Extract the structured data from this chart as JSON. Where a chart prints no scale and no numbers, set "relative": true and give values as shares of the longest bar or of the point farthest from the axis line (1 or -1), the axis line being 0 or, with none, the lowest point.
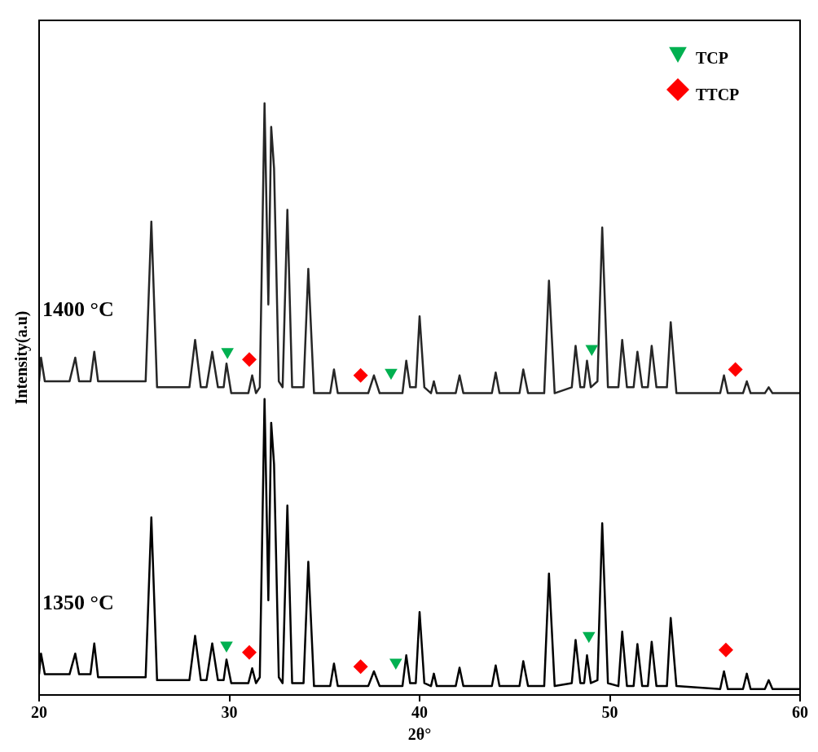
{
  "chart_data": {
    "type": "line",
    "xlabel": "2θ°",
    "ylabel": "Intensity(a.u)",
    "relative": true,
    "xlim": [
      20,
      60
    ],
    "xticks": [
      20,
      30,
      40,
      50,
      60
    ],
    "grid": false,
    "legend": "top right",
    "x": [
      20,
      20.1,
      20.3,
      21.6,
      21.9,
      22.1,
      22.7,
      22.9,
      23.1,
      25.6,
      25.9,
      26.2,
      27.9,
      28.2,
      28.5,
      28.8,
      29.1,
      29.4,
      29.7,
      29.85,
      30.1,
      31.0,
      31.2,
      31.4,
      31.6,
      31.85,
      32.05,
      32.2,
      32.35,
      32.6,
      32.8,
      33.05,
      33.3,
      33.9,
      34.15,
      34.45,
      35.3,
      35.5,
      35.7,
      37.3,
      37.6,
      37.9,
      39.1,
      39.3,
      39.5,
      39.8,
      40.0,
      40.25,
      40.6,
      40.75,
      40.9,
      41.9,
      42.1,
      42.3,
      43.8,
      44.0,
      44.2,
      45.25,
      45.45,
      45.7,
      46.55,
      46.8,
      47.1,
      48.0,
      48.2,
      48.45,
      48.65,
      48.8,
      49.0,
      49.35,
      49.6,
      49.9,
      50.45,
      50.65,
      50.9,
      51.25,
      51.45,
      51.7,
      52.0,
      52.2,
      52.45,
      53.0,
      53.2,
      53.5,
      55.8,
      56.0,
      56.2,
      57.0,
      57.2,
      57.4,
      58.15,
      58.35,
      58.55,
      60
    ],
    "series": [
      {
        "name": "1400 °C",
        "color": "#262626",
        "marker": "none",
        "values": [
          0.53,
          0.57,
          0.53,
          0.53,
          0.57,
          0.53,
          0.53,
          0.58,
          0.53,
          0.53,
          0.8,
          0.52,
          0.52,
          0.6,
          0.52,
          0.52,
          0.58,
          0.52,
          0.52,
          0.56,
          0.51,
          0.51,
          0.54,
          0.51,
          0.52,
          1.0,
          0.66,
          0.96,
          0.89,
          0.53,
          0.52,
          0.82,
          0.52,
          0.52,
          0.72,
          0.51,
          0.51,
          0.55,
          0.51,
          0.51,
          0.54,
          0.51,
          0.51,
          0.565,
          0.52,
          0.52,
          0.64,
          0.52,
          0.51,
          0.53,
          0.51,
          0.51,
          0.54,
          0.51,
          0.51,
          0.545,
          0.51,
          0.51,
          0.55,
          0.51,
          0.51,
          0.7,
          0.51,
          0.52,
          0.59,
          0.52,
          0.52,
          0.565,
          0.52,
          0.53,
          0.79,
          0.52,
          0.52,
          0.6,
          0.52,
          0.52,
          0.58,
          0.52,
          0.52,
          0.59,
          0.52,
          0.52,
          0.63,
          0.51,
          0.51,
          0.54,
          0.51,
          0.51,
          0.53,
          0.51,
          0.51,
          0.52,
          0.51,
          0.51
        ]
      },
      {
        "name": "1350 °C",
        "color": "#000000",
        "marker": "none",
        "values": [
          0.035,
          0.07,
          0.035,
          0.035,
          0.07,
          0.035,
          0.035,
          0.087,
          0.03,
          0.03,
          0.3,
          0.025,
          0.025,
          0.1,
          0.025,
          0.025,
          0.087,
          0.025,
          0.025,
          0.06,
          0.02,
          0.02,
          0.045,
          0.02,
          0.03,
          0.5,
          0.16,
          0.46,
          0.39,
          0.03,
          0.02,
          0.32,
          0.02,
          0.02,
          0.225,
          0.015,
          0.015,
          0.053,
          0.015,
          0.015,
          0.04,
          0.015,
          0.015,
          0.067,
          0.02,
          0.02,
          0.14,
          0.02,
          0.015,
          0.036,
          0.015,
          0.015,
          0.046,
          0.015,
          0.015,
          0.05,
          0.015,
          0.015,
          0.057,
          0.015,
          0.015,
          0.205,
          0.015,
          0.02,
          0.093,
          0.02,
          0.02,
          0.067,
          0.02,
          0.025,
          0.29,
          0.02,
          0.015,
          0.107,
          0.015,
          0.015,
          0.086,
          0.015,
          0.015,
          0.09,
          0.015,
          0.015,
          0.13,
          0.015,
          0.01,
          0.04,
          0.01,
          0.01,
          0.036,
          0.01,
          0.01,
          0.025,
          0.01,
          0.01
        ]
      },
      {
        "name": "TCP",
        "type": "scatter",
        "color": "#00b050",
        "marker": "triangle",
        "x": [
          29.9,
          38.5,
          49.05,
          29.85,
          38.75,
          48.9
        ],
        "values": [
          0.58,
          0.545,
          0.585,
          0.084,
          0.055,
          0.1
        ]
      },
      {
        "name": "TTCP",
        "type": "scatter",
        "color": "#ff0000",
        "marker": "diamond",
        "x": [
          31.05,
          36.9,
          56.6,
          31.05,
          36.9,
          56.1
        ],
        "values": [
          0.567,
          0.54,
          0.55,
          0.072,
          0.048,
          0.076
        ]
      }
    ]
  }
}
